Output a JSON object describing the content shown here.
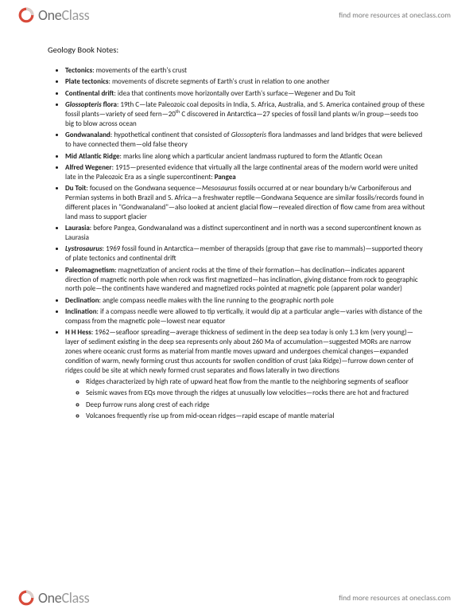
{
  "header": {
    "logo_one": "One",
    "logo_class": "Class",
    "link": "find more resources at oneclass.com"
  },
  "footer": {
    "logo_one": "One",
    "logo_class": "Class",
    "link": "find more resources at oneclass.com"
  },
  "title": "Geology Book Notes:",
  "bullets": [
    {
      "term": "Tectonics",
      "term_style": "b",
      "text": ": movements of the earth's crust"
    },
    {
      "term": "Plate tectonics",
      "term_style": "b",
      "text": ": movements of discrete segments of Earth's crust in relation to one another"
    },
    {
      "term": "Continental drift",
      "term_style": "b",
      "text": ": idea that continents move horizontally over Earth's surface—Wegener and Du Toit"
    },
    {
      "term": "Glossopteris",
      "term_style": "bi",
      "suffix_bold": " flora",
      "text": ": 19th C—late Paleozoic coal deposits in India, S. Africa, Australia, and S. America contained group of these fossil plants—variety of seed fern—20",
      "sup": "th",
      "text2": " C discovered in Antarctica—27 species of fossil land plants w/in group—seeds too big to blow across ocean"
    },
    {
      "term": "Gondwanaland",
      "term_style": "b",
      "text": ": hypothetical continent that consisted of ",
      "ital": "Glossopteris",
      "text2": " flora landmasses and land bridges that were believed to have connected them—old false theory"
    },
    {
      "term": "Mid Atlantic Ridge",
      "term_style": "b",
      "text": ": marks line along which a particular ancient landmass ruptured to form the Atlantic Ocean"
    },
    {
      "term": "Alfred Wegener",
      "term_style": "b",
      "text": ": 1915—presented evidence that virtually all the large continental areas of the modern world were united late in the Paleozoic Era as a single supercontinent: ",
      "bold_tail": "Pangea"
    },
    {
      "term": "Du Toit",
      "term_style": "b",
      "text": ": focused on the Gondwana sequence—",
      "ital": "Mesosaurus",
      "text2": " fossils occurred at or near boundary b/w Carboniferous and Permian systems in both Brazil and S. Africa—a freshwater reptile—Gondwana Sequence are similar fossils/records found in different places in \"Gondwanaland\"—also looked at ancient glacial flow—revealed direction of flow came from area without land mass to support glacier"
    },
    {
      "term": "Laurasia",
      "term_style": "b",
      "text": ": before Pangea, Gondwanaland was a distinct supercontinent and in north was a second supercontinent known as Laurasia"
    },
    {
      "term": "Lystrosaurus",
      "term_style": "bi",
      "text": ": 1969 fossil found in Antarctica—member of therapsids (group that gave rise to mammals)—supported theory of plate tectonics and continental drift"
    },
    {
      "term": "Paleomagnetism",
      "term_style": "b",
      "text": ": magnetization of ancient rocks at the time of their formation—has declination—indicates apparent direction of magnetic north pole when rock was first magnetized—has inclination, giving distance from rock to geographic north pole—the continents have wandered and magnetized rocks pointed at magnetic pole (apparent polar wander)"
    },
    {
      "term": "Declination",
      "term_style": "b",
      "text": ": angle compass needle makes with the line running to the geographic north pole"
    },
    {
      "term": "Inclination",
      "term_style": "b",
      "text": ": if a compass needle were allowed to tip vertically, it would dip at a particular angle—varies with distance of the compass from the magnetic pole—lowest near equator"
    },
    {
      "term": "H H Hess",
      "term_style": "b",
      "text": ": 1962—seafloor spreading—average thickness of sediment in the deep sea today is only 1.3 km (very young)—layer of sediment existing in the deep sea represents only about 260 Ma of accumulation—suggested MORs are narrow zones where oceanic crust forms as material from mantle moves upward and undergoes chemical changes—expanded condition of warm, newly forming crust thus accounts for swollen condition of crust (aka Ridge)—furrow down center of ridges could be site at which newly formed crust separates and flows laterally in two directions"
    }
  ],
  "subbullets": [
    "Ridges characterized by high rate of upward heat flow from the mantle to the neighboring segments of seafloor",
    "Seismic waves from EQs move through the ridges at unusually low velocities—rocks there are hot and fractured",
    "Deep furrow runs along crest of each ridge",
    "Volcanoes frequently rise up from mid-ocean ridges—rapid escape of mantle material"
  ],
  "colors": {
    "text": "#1a1a1a",
    "logo_gray": "#6b6b6b",
    "link_gray": "#7a7a7a",
    "ring_red": "#d84a3a",
    "ring_gray": "#cfcfcf"
  }
}
